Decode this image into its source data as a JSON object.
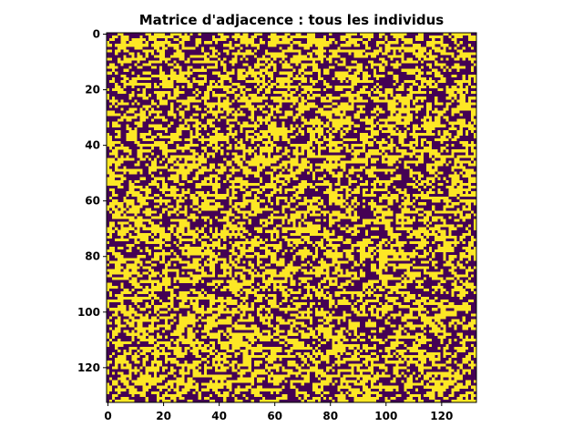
{
  "chart_data": {
    "type": "heatmap",
    "title": "Matrice d'adjacence : tous les individus",
    "xlabel": "",
    "ylabel": "",
    "size": 133,
    "xlim": [
      -0.5,
      132.5
    ],
    "ylim": [
      132.5,
      -0.5
    ],
    "xticks": [
      "0",
      "20",
      "40",
      "60",
      "80",
      "100",
      "120"
    ],
    "yticks": [
      "0",
      "20",
      "40",
      "60",
      "80",
      "100",
      "120"
    ],
    "value_range": [
      0,
      1
    ],
    "density_of_ones": 0.48,
    "colormap": "viridis",
    "colors": {
      "zero": "#440154",
      "one": "#fde725"
    },
    "grid": false,
    "legend": "none"
  }
}
